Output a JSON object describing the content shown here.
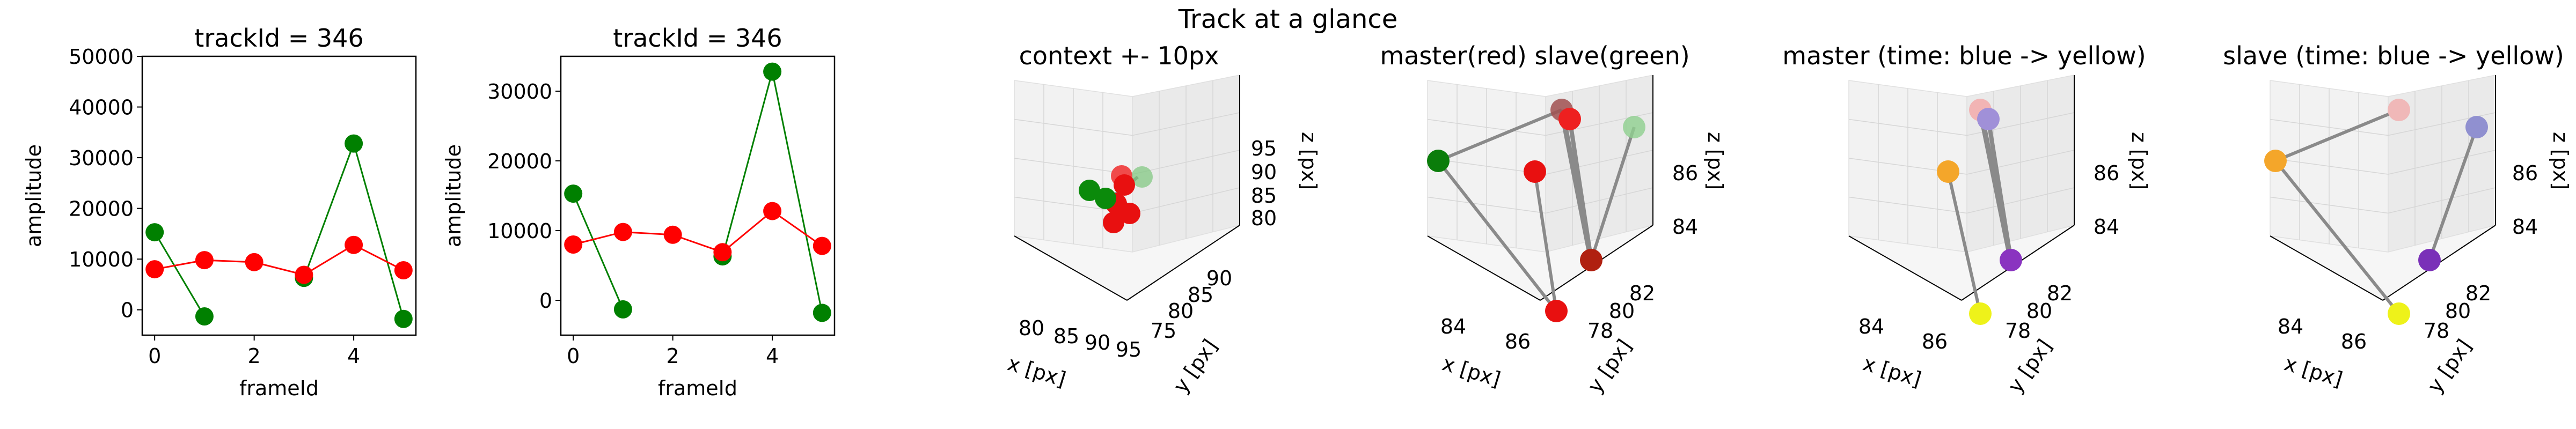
{
  "figure": {
    "suptitle": "Track at a glance"
  },
  "chart_data": [
    {
      "type": "line",
      "title": "trackId = 346",
      "xlabel": "frameId",
      "ylabel": "amplitude",
      "xlim": [
        -0.25,
        5.25
      ],
      "ylim": [
        -5000,
        50000
      ],
      "xticks": [
        0,
        2,
        4
      ],
      "yticks": [
        0,
        10000,
        20000,
        30000,
        40000,
        50000
      ],
      "x": [
        0,
        1,
        2,
        3,
        4,
        5
      ],
      "series": [
        {
          "color": "#008000",
          "values": [
            15300,
            -1300,
            null,
            6300,
            32800,
            -1800
          ]
        },
        {
          "color": "#ff0000",
          "values": [
            8000,
            9800,
            9400,
            6900,
            12800,
            7800
          ]
        }
      ]
    },
    {
      "type": "line",
      "title": "trackId = 346",
      "xlabel": "frameId",
      "ylabel": "amplitude",
      "xlim": [
        -0.25,
        5.25
      ],
      "ylim": [
        -5000,
        35000
      ],
      "xticks": [
        0,
        2,
        4
      ],
      "yticks": [
        0,
        10000,
        20000,
        30000
      ],
      "x": [
        0,
        1,
        2,
        3,
        4,
        5
      ],
      "series": [
        {
          "color": "#008000",
          "values": [
            15300,
            -1300,
            null,
            6300,
            32800,
            -1800
          ]
        },
        {
          "color": "#ff0000",
          "values": [
            8000,
            9800,
            9400,
            6900,
            12800,
            7800
          ]
        }
      ]
    },
    {
      "type": "scatter3d",
      "title": "context +- 10px",
      "xlabel": "x [px]",
      "ylabel": "y [px]",
      "zlabel": "z [px]",
      "xticks": [
        "80",
        "85",
        "90",
        "95"
      ],
      "yticks": [
        "75",
        "80",
        "85",
        "90"
      ],
      "zticks": [
        "80",
        "85",
        "90",
        "95"
      ]
    },
    {
      "type": "scatter3d",
      "title": "master(red) slave(green)",
      "xlabel": "x [px]",
      "ylabel": "y [px]",
      "zlabel": "z [px]",
      "xticks": [
        "84",
        "86"
      ],
      "yticks": [
        "78",
        "80",
        "82"
      ],
      "zticks": [
        "84",
        "86"
      ]
    },
    {
      "type": "scatter3d",
      "title": "master (time: blue -> yellow)",
      "xlabel": "x [px]",
      "ylabel": "y [px]",
      "zlabel": "z [px]",
      "xticks": [
        "84",
        "86"
      ],
      "yticks": [
        "78",
        "80",
        "82"
      ],
      "zticks": [
        "84",
        "86"
      ]
    },
    {
      "type": "scatter3d",
      "title": "slave (time: blue -> yellow)",
      "xlabel": "x [px]",
      "ylabel": "y [px]",
      "zlabel": "z [px]",
      "xticks": [
        "84",
        "86"
      ],
      "yticks": [
        "78",
        "80",
        "82"
      ],
      "zticks": [
        "84",
        "86"
      ]
    }
  ]
}
